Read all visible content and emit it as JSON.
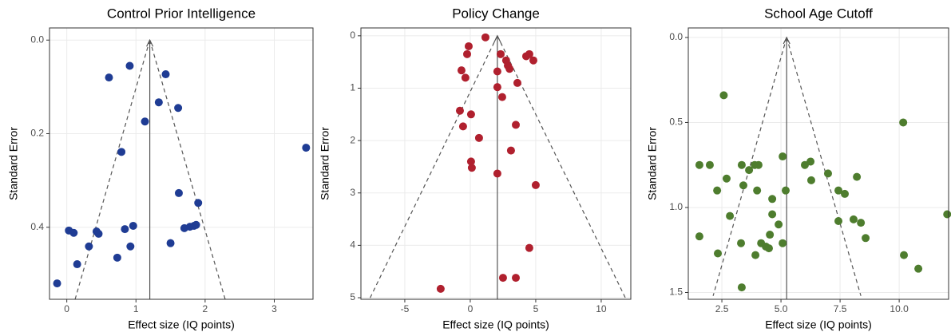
{
  "chart_data": [
    {
      "type": "scatter",
      "title": "Control Prior Intelligence",
      "x_label": "Effect size (IQ points)",
      "y_label": "Standard Error",
      "color": "#1f3c94",
      "xlim": [
        -0.25,
        3.56
      ],
      "ylim": [
        -0.026,
        0.554
      ],
      "y_reversed": true,
      "grid": true,
      "xticks": [
        0,
        1,
        2,
        3
      ],
      "yticks": [
        {
          "value": 0,
          "label": "0.0"
        },
        {
          "value": 0.2,
          "label": "0.2"
        },
        {
          "value": 0.4,
          "label": "0.4"
        }
      ],
      "x": [
        0.91,
        0.61,
        1.43,
        1.33,
        1.61,
        1.13,
        0.79,
        3.46,
        1.62,
        1.9,
        0.84,
        0.96,
        0.03,
        0.1,
        0.43,
        0.46,
        1.7,
        1.78,
        1.84,
        1.87,
        0.32,
        0.92,
        1.5,
        0.73,
        0.15,
        -0.14
      ],
      "values": [
        0.055,
        0.08,
        0.073,
        0.133,
        0.145,
        0.174,
        0.239,
        0.23,
        0.327,
        0.348,
        0.404,
        0.397,
        0.407,
        0.412,
        0.409,
        0.414,
        0.402,
        0.399,
        0.397,
        0.395,
        0.441,
        0.441,
        0.434,
        0.465,
        0.479,
        0.52
      ],
      "reference_x": 1.2,
      "funnel": [
        {
          "x": [
            1.2,
            0.12
          ],
          "y": [
            0,
            0.554
          ]
        },
        {
          "x": [
            1.2,
            2.29
          ],
          "y": [
            0,
            0.554
          ]
        }
      ]
    },
    {
      "type": "scatter",
      "title": "Policy Change",
      "x_label": "Effect size (IQ points)",
      "y_label": "Standard Error",
      "color": "#b0202e",
      "xlim": [
        -8.35,
        12.26
      ],
      "ylim": [
        -0.15,
        5.03
      ],
      "y_reversed": true,
      "grid": true,
      "xticks": [
        -5,
        0,
        5,
        10
      ],
      "yticks": [
        0,
        1,
        2,
        3,
        4,
        5
      ],
      "x": [
        1.16,
        -0.12,
        -0.24,
        2.32,
        4.51,
        4.27,
        4.82,
        2.74,
        2.87,
        3.0,
        2.07,
        -0.67,
        -0.37,
        3.6,
        2.07,
        2.44,
        -0.79,
        0.06,
        -0.55,
        3.48,
        0.67,
        3.11,
        0.06,
        0.12,
        2.07,
        5.0,
        4.51,
        2.5,
        3.48,
        -2.26
      ],
      "values": [
        0.03,
        0.2,
        0.35,
        0.35,
        0.35,
        0.39,
        0.47,
        0.47,
        0.57,
        0.63,
        0.68,
        0.66,
        0.8,
        0.9,
        0.98,
        1.17,
        1.43,
        1.5,
        1.73,
        1.7,
        1.95,
        2.19,
        2.4,
        2.52,
        2.63,
        2.85,
        4.05,
        4.62,
        4.62,
        4.83
      ],
      "reference_x": 2.07,
      "funnel": [
        {
          "x": [
            2.07,
            -7.7
          ],
          "y": [
            0,
            5.03
          ]
        },
        {
          "x": [
            2.07,
            11.9
          ],
          "y": [
            0,
            5.03
          ]
        }
      ]
    },
    {
      "type": "scatter",
      "title": "School Age Cutoff",
      "x_label": "Effect size (IQ points)",
      "y_label": "Standard Error",
      "color": "#4e7d2e",
      "xlim": [
        1.08,
        12.09
      ],
      "ylim": [
        -0.056,
        1.54
      ],
      "y_reversed": true,
      "grid": true,
      "xticks": [
        2.5,
        {
          "value": 5,
          "label": "5.0"
        },
        7.5,
        {
          "value": 10,
          "label": "10.0"
        }
      ],
      "yticks": [
        {
          "value": 0,
          "label": "0.0"
        },
        0.5,
        {
          "value": 1,
          "label": "1.0"
        },
        1.5
      ],
      "x": [
        2.58,
        10.17,
        1.55,
        1.99,
        3.34,
        3.89,
        4.05,
        3.65,
        2.7,
        5.07,
        6.01,
        6.25,
        6.99,
        8.21,
        6.28,
        2.3,
        3.41,
        3.99,
        5.2,
        7.43,
        7.7,
        4.63,
        2.84,
        4.63,
        4.9,
        7.43,
        8.07,
        8.38,
        12.03,
        4.53,
        1.55,
        8.58,
        3.31,
        4.16,
        4.36,
        4.49,
        5.07,
        2.33,
        3.92,
        10.2,
        10.81,
        3.34
      ],
      "values": [
        0.34,
        0.5,
        0.75,
        0.75,
        0.75,
        0.75,
        0.75,
        0.78,
        0.83,
        0.7,
        0.75,
        0.73,
        0.8,
        0.82,
        0.84,
        0.9,
        0.87,
        0.9,
        0.9,
        0.9,
        0.92,
        0.95,
        1.05,
        1.04,
        1.1,
        1.08,
        1.07,
        1.09,
        1.04,
        1.16,
        1.17,
        1.18,
        1.21,
        1.21,
        1.23,
        1.24,
        1.21,
        1.27,
        1.28,
        1.28,
        1.36,
        1.47
      ],
      "reference_x": 5.24,
      "funnel": [
        {
          "x": [
            5.24,
            2.13
          ],
          "y": [
            0,
            1.52
          ]
        },
        {
          "x": [
            5.24,
            8.38
          ],
          "y": [
            0,
            1.52
          ]
        }
      ]
    }
  ]
}
